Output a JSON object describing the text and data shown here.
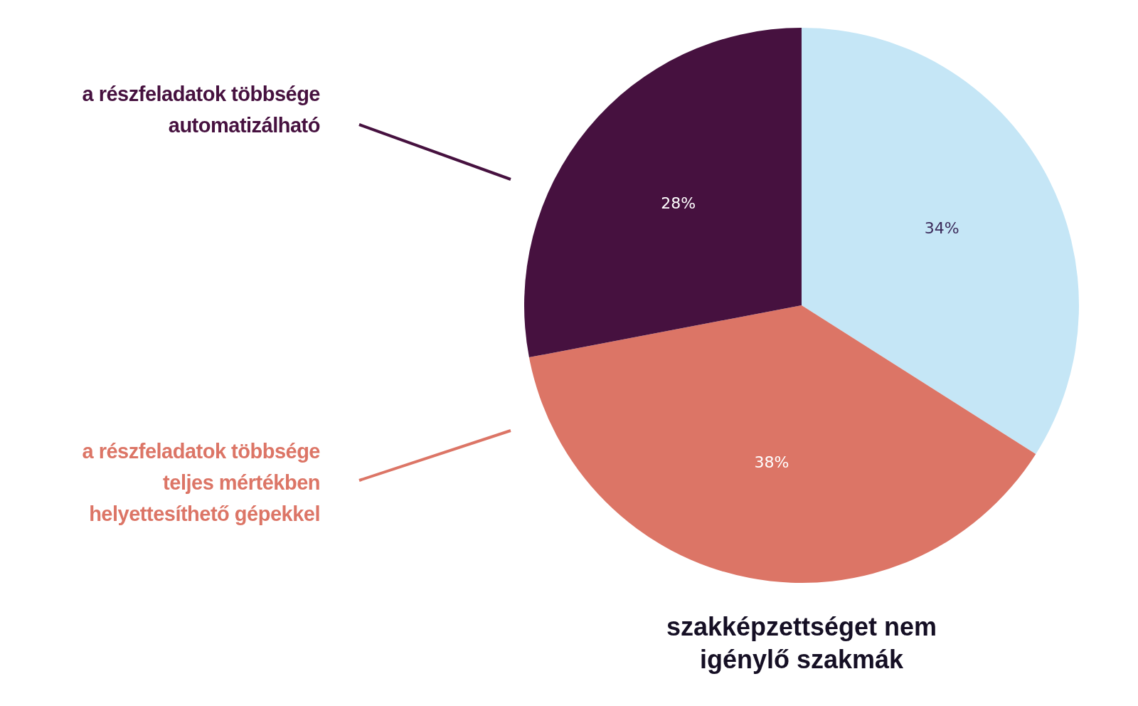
{
  "chart_data": {
    "type": "pie",
    "title": "szakképzettséget nem igénylő szakmák",
    "categories": [
      null,
      "a részfeladatok többsége teljes mértékben helyettesíthető gépekkel",
      "a részfeladatok többsége automatizálható"
    ],
    "values": [
      34,
      38,
      28
    ],
    "colors": [
      "#c5e6f6",
      "#dc7566",
      "#46113f"
    ],
    "value_labels": [
      "34%",
      "38%",
      "28%"
    ]
  }
}
